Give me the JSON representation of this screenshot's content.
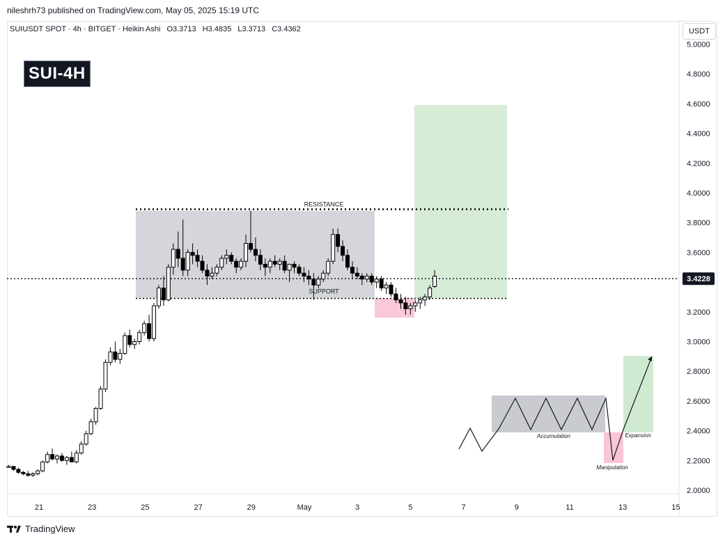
{
  "header": {
    "publisher": "nileshrh73 published on TradingView.com, May 05, 2025 15:19 UTC",
    "symbol": "SUIUSDT SPOT · 4h · BITGET · Heikin Ashi",
    "ohlc": {
      "open": "O3.3713",
      "high": "H3.4835",
      "low": "L3.3713",
      "close": "C3.4362"
    },
    "badge": "SUI-4H",
    "currency": "USDT"
  },
  "footer": {
    "brand": "TradingView"
  },
  "colors": {
    "up": "#ffffff",
    "down": "#000000",
    "box": "#b2b5be",
    "target": "#c8e6c9",
    "stop": "#f8bbd0",
    "price_label_bg": "#131722"
  },
  "chart_data": {
    "type": "candlestick",
    "ylim": [
      1.95,
      5.05
    ],
    "y_ticks": [
      "5.0000",
      "4.8000",
      "4.6000",
      "4.4000",
      "4.2000",
      "4.0000",
      "3.8000",
      "3.6000",
      "3.4000",
      "3.2000",
      "3.0000",
      "2.8000",
      "2.6000",
      "2.4000",
      "2.2000",
      "2.0000"
    ],
    "x_ticks": [
      "21",
      "23",
      "25",
      "27",
      "29",
      "May",
      "3",
      "5",
      "7",
      "9",
      "11",
      "13",
      "15"
    ],
    "current_price": "3.4228",
    "resistance": {
      "label": "RESISTANCE",
      "price": 3.89
    },
    "support": {
      "label": "SUPPORT",
      "price": 3.29
    },
    "range_box": {
      "top": 3.88,
      "bottom": 3.29
    },
    "stop_zone": {
      "top": 3.29,
      "bottom": 3.16
    },
    "target_zone": {
      "top": 4.59,
      "bottom": 3.29
    },
    "inset_labels": {
      "accumulation": "Accumulation",
      "manipulation": "Manipulation",
      "expansion": "Expansion"
    },
    "candles": [
      [
        2.16,
        2.17,
        2.15,
        2.16
      ],
      [
        2.16,
        2.16,
        2.13,
        2.14
      ],
      [
        2.14,
        2.15,
        2.11,
        2.12
      ],
      [
        2.12,
        2.13,
        2.1,
        2.11
      ],
      [
        2.11,
        2.13,
        2.09,
        2.1
      ],
      [
        2.1,
        2.12,
        2.09,
        2.11
      ],
      [
        2.11,
        2.14,
        2.1,
        2.13
      ],
      [
        2.13,
        2.2,
        2.12,
        2.19
      ],
      [
        2.19,
        2.26,
        2.18,
        2.24
      ],
      [
        2.24,
        2.28,
        2.2,
        2.21
      ],
      [
        2.21,
        2.24,
        2.18,
        2.23
      ],
      [
        2.23,
        2.25,
        2.19,
        2.2
      ],
      [
        2.2,
        2.23,
        2.17,
        2.22
      ],
      [
        2.22,
        2.26,
        2.19,
        2.19
      ],
      [
        2.19,
        2.27,
        2.18,
        2.25
      ],
      [
        2.25,
        2.33,
        2.24,
        2.31
      ],
      [
        2.31,
        2.4,
        2.3,
        2.38
      ],
      [
        2.38,
        2.48,
        2.37,
        2.46
      ],
      [
        2.46,
        2.56,
        2.44,
        2.55
      ],
      [
        2.55,
        2.7,
        2.54,
        2.68
      ],
      [
        2.68,
        2.88,
        2.66,
        2.86
      ],
      [
        2.86,
        2.96,
        2.84,
        2.93
      ],
      [
        2.93,
        3.0,
        2.86,
        2.88
      ],
      [
        2.88,
        2.95,
        2.85,
        2.92
      ],
      [
        2.92,
        3.06,
        2.91,
        3.04
      ],
      [
        3.04,
        3.08,
        2.96,
        2.98
      ],
      [
        2.98,
        3.02,
        2.95,
        3.0
      ],
      [
        3.0,
        3.08,
        2.98,
        3.06
      ],
      [
        3.06,
        3.14,
        3.04,
        3.12
      ],
      [
        3.12,
        3.18,
        3.0,
        3.02
      ],
      [
        3.02,
        3.26,
        3.0,
        3.24
      ],
      [
        3.24,
        3.38,
        3.22,
        3.36
      ],
      [
        3.36,
        3.44,
        3.24,
        3.28
      ],
      [
        3.28,
        3.52,
        3.27,
        3.5
      ],
      [
        3.5,
        3.66,
        3.45,
        3.62
      ],
      [
        3.62,
        3.74,
        3.5,
        3.56
      ],
      [
        3.56,
        3.82,
        3.44,
        3.48
      ],
      [
        3.48,
        3.62,
        3.44,
        3.6
      ],
      [
        3.6,
        3.66,
        3.52,
        3.58
      ],
      [
        3.58,
        3.62,
        3.5,
        3.54
      ],
      [
        3.54,
        3.58,
        3.46,
        3.48
      ],
      [
        3.48,
        3.52,
        3.38,
        3.44
      ],
      [
        3.44,
        3.5,
        3.42,
        3.46
      ],
      [
        3.46,
        3.52,
        3.44,
        3.5
      ],
      [
        3.5,
        3.58,
        3.48,
        3.56
      ],
      [
        3.56,
        3.62,
        3.52,
        3.58
      ],
      [
        3.58,
        3.6,
        3.52,
        3.54
      ],
      [
        3.54,
        3.56,
        3.46,
        3.5
      ],
      [
        3.5,
        3.56,
        3.48,
        3.54
      ],
      [
        3.54,
        3.72,
        3.5,
        3.66
      ],
      [
        3.66,
        3.88,
        3.6,
        3.62
      ],
      [
        3.62,
        3.7,
        3.54,
        3.58
      ],
      [
        3.58,
        3.62,
        3.48,
        3.52
      ],
      [
        3.52,
        3.56,
        3.44,
        3.5
      ],
      [
        3.5,
        3.56,
        3.46,
        3.54
      ],
      [
        3.54,
        3.58,
        3.5,
        3.52
      ],
      [
        3.52,
        3.56,
        3.48,
        3.54
      ],
      [
        3.54,
        3.58,
        3.46,
        3.48
      ],
      [
        3.48,
        3.52,
        3.4,
        3.52
      ],
      [
        3.52,
        3.54,
        3.46,
        3.5
      ],
      [
        3.5,
        3.52,
        3.44,
        3.46
      ],
      [
        3.46,
        3.5,
        3.4,
        3.44
      ],
      [
        3.44,
        3.48,
        3.38,
        3.42
      ],
      [
        3.42,
        3.46,
        3.28,
        3.38
      ],
      [
        3.38,
        3.44,
        3.36,
        3.42
      ],
      [
        3.42,
        3.48,
        3.4,
        3.46
      ],
      [
        3.46,
        3.56,
        3.44,
        3.54
      ],
      [
        3.54,
        3.76,
        3.52,
        3.72
      ],
      [
        3.72,
        3.76,
        3.6,
        3.64
      ],
      [
        3.64,
        3.68,
        3.54,
        3.58
      ],
      [
        3.58,
        3.62,
        3.48,
        3.5
      ],
      [
        3.5,
        3.54,
        3.42,
        3.46
      ],
      [
        3.46,
        3.5,
        3.42,
        3.44
      ],
      [
        3.44,
        3.46,
        3.38,
        3.42
      ],
      [
        3.42,
        3.46,
        3.4,
        3.44
      ],
      [
        3.44,
        3.46,
        3.38,
        3.4
      ],
      [
        3.4,
        3.44,
        3.36,
        3.42
      ],
      [
        3.42,
        3.44,
        3.34,
        3.36
      ],
      [
        3.36,
        3.4,
        3.32,
        3.38
      ],
      [
        3.38,
        3.4,
        3.3,
        3.32
      ],
      [
        3.32,
        3.36,
        3.26,
        3.28
      ],
      [
        3.28,
        3.32,
        3.22,
        3.26
      ],
      [
        3.26,
        3.3,
        3.18,
        3.22
      ],
      [
        3.22,
        3.26,
        3.18,
        3.24
      ],
      [
        3.24,
        3.28,
        3.2,
        3.26
      ],
      [
        3.26,
        3.3,
        3.22,
        3.28
      ],
      [
        3.28,
        3.32,
        3.24,
        3.3
      ],
      [
        3.3,
        3.38,
        3.28,
        3.36
      ],
      [
        3.37,
        3.48,
        3.36,
        3.44
      ]
    ]
  }
}
